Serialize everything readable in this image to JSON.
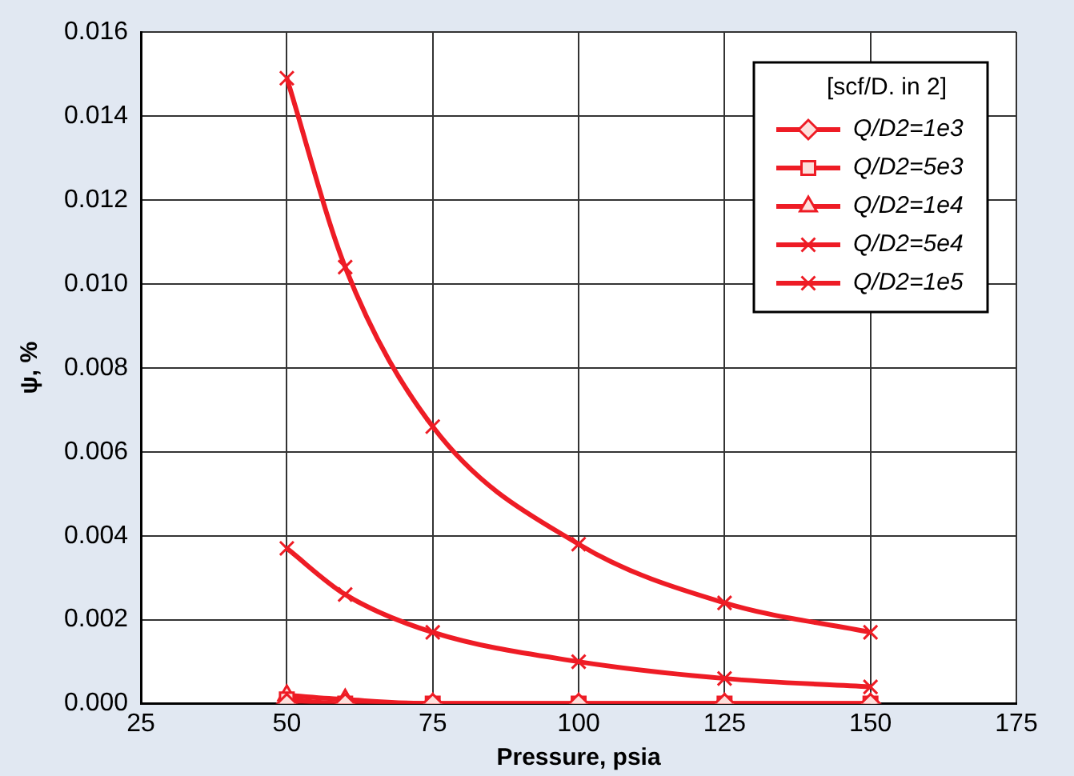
{
  "chart_data": {
    "type": "line",
    "xlabel": "Pressure, psia",
    "ylabel": "ψ, %",
    "legend_title": "[scf/D. in 2]",
    "x": [
      50,
      60,
      75,
      100,
      125,
      150
    ],
    "xlim": [
      25,
      175
    ],
    "xticks": [
      25,
      50,
      75,
      100,
      125,
      150,
      175
    ],
    "ylim": [
      0,
      0.016
    ],
    "yticks": [
      {
        "value": 0,
        "label": "0.000"
      },
      {
        "value": 0.002,
        "label": "0.002"
      },
      {
        "value": 0.004,
        "label": "0.004"
      },
      {
        "value": 0.006,
        "label": "0.006"
      },
      {
        "value": 0.008,
        "label": "0.008"
      },
      {
        "value": 0.01,
        "label": "0.010"
      },
      {
        "value": 0.012,
        "label": "0.012"
      },
      {
        "value": 0.014,
        "label": "0.014"
      },
      {
        "value": 0.016,
        "label": "0.016"
      }
    ],
    "grid": true,
    "legend": "top right",
    "series": [
      {
        "name": "Q/D2=1e3",
        "color": "#ee1c25",
        "marker": "diamond",
        "values": [
          0,
          0,
          0,
          0,
          0,
          0
        ]
      },
      {
        "name": "Q/D2=5e3",
        "color": "#ee1c25",
        "marker": "square",
        "values": [
          0.0001,
          0,
          0,
          0,
          0,
          0
        ]
      },
      {
        "name": "Q/D2=1e4",
        "color": "#ee1c25",
        "marker": "triangle",
        "values": [
          0.0002,
          0.0001,
          0,
          0,
          0,
          0
        ]
      },
      {
        "name": "Q/D2=5e4",
        "color": "#ee1c25",
        "marker": "cross",
        "values": [
          0.0037,
          0.0026,
          0.0017,
          0.001,
          0.0006,
          0.0004
        ]
      },
      {
        "name": "Q/D2=1e5",
        "color": "#ee1c25",
        "marker": "cross",
        "values": [
          0.0149,
          0.0104,
          0.0066,
          0.0038,
          0.0024,
          0.0017
        ]
      }
    ]
  }
}
